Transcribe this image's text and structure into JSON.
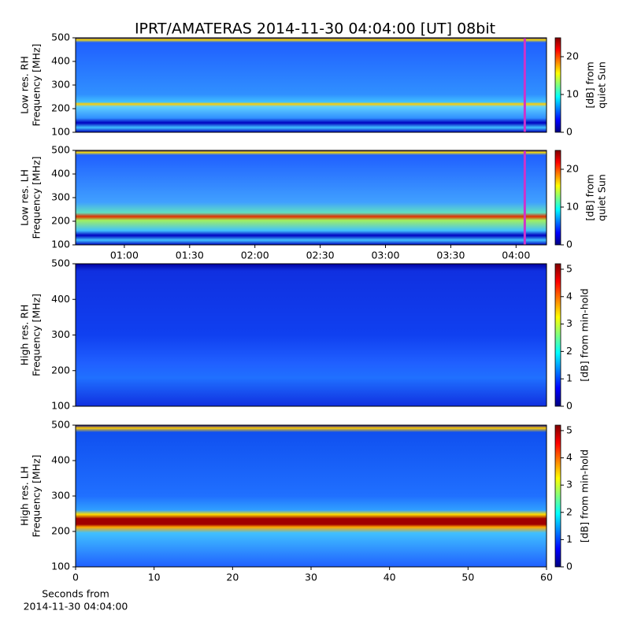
{
  "title": "IPRT/AMATERAS 2014-11-30 04:04:00 [UT]   08bit",
  "chart_data": [
    {
      "type": "heatmap",
      "colormap": "jet",
      "ylabel": [
        "Low res. RH",
        "Frequency [MHz]"
      ],
      "ylim": [
        100,
        500
      ],
      "yticks": [
        100,
        200,
        300,
        400,
        500
      ],
      "xlim": [
        37.6,
        254
      ],
      "marker": {
        "value": 244,
        "color": "#cc33cc"
      },
      "colorbar": {
        "label": [
          "[dB] from",
          "quiet Sun"
        ],
        "lim": [
          0,
          25
        ],
        "ticks": [
          0,
          10,
          20
        ]
      }
    },
    {
      "type": "heatmap",
      "colormap": "jet",
      "ylabel": [
        "Low res. LH",
        "Frequency [MHz]"
      ],
      "ylim": [
        100,
        500
      ],
      "yticks": [
        100,
        200,
        300,
        400,
        500
      ],
      "xlim": [
        37.6,
        254
      ],
      "xticks": [
        {
          "value": 60,
          "label": "01:00"
        },
        {
          "value": 90,
          "label": "01:30"
        },
        {
          "value": 120,
          "label": "02:00"
        },
        {
          "value": 150,
          "label": "02:30"
        },
        {
          "value": 180,
          "label": "03:00"
        },
        {
          "value": 210,
          "label": "03:30"
        },
        {
          "value": 240,
          "label": "04:00"
        }
      ],
      "marker": {
        "value": 244,
        "color": "#cc33cc"
      },
      "colorbar": {
        "label": [
          "[dB] from",
          "quiet Sun"
        ],
        "lim": [
          0,
          25
        ],
        "ticks": [
          0,
          10,
          20
        ]
      }
    },
    {
      "type": "heatmap",
      "colormap": "jet",
      "ylabel": [
        "High res. RH",
        "Frequency [MHz]"
      ],
      "ylim": [
        100,
        500
      ],
      "yticks": [
        100,
        200,
        300,
        400,
        500
      ],
      "xlim": [
        0,
        60
      ],
      "colorbar": {
        "label": [
          "[dB] from min-hold"
        ],
        "lim": [
          0,
          5.2
        ],
        "ticks": [
          0,
          1,
          2,
          3,
          4,
          5
        ]
      }
    },
    {
      "type": "heatmap",
      "colormap": "jet",
      "ylabel": [
        "High res. LH",
        "Frequency [MHz]"
      ],
      "ylim": [
        100,
        500
      ],
      "yticks": [
        100,
        200,
        300,
        400,
        500
      ],
      "xlim": [
        0,
        60
      ],
      "xticks": [
        0,
        10,
        20,
        30,
        40,
        50,
        60
      ],
      "xlabel": [
        "Seconds from",
        "2014-11-30 04:04:00"
      ],
      "colorbar": {
        "label": [
          "[dB] from min-hold"
        ],
        "lim": [
          0,
          5.2
        ],
        "ticks": [
          0,
          1,
          2,
          3,
          4,
          5
        ]
      }
    }
  ]
}
